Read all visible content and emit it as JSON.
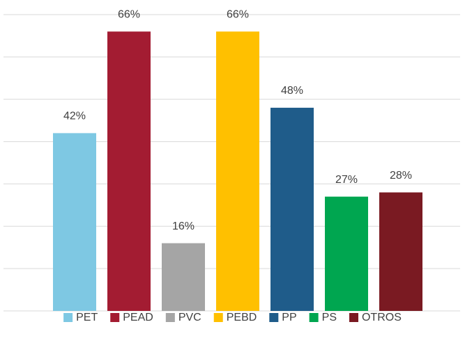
{
  "chart_data": {
    "type": "bar",
    "categories": [
      "PET",
      "PEAD",
      "PVC",
      "PEBD",
      "PP",
      "PS",
      "OTROS"
    ],
    "values": [
      42,
      66,
      16,
      66,
      48,
      27,
      28
    ],
    "value_labels": [
      "42%",
      "66%",
      "16%",
      "66%",
      "48%",
      "27%",
      "28%"
    ],
    "colors": [
      "#7ec8e3",
      "#a31c32",
      "#a5a5a5",
      "#ffc000",
      "#1f5c8a",
      "#00a650",
      "#7a1a22"
    ],
    "ylim": [
      0,
      70
    ],
    "yticks": [
      0,
      10,
      20,
      30,
      40,
      50,
      60,
      70
    ],
    "grid": true,
    "legend": "bottom"
  }
}
